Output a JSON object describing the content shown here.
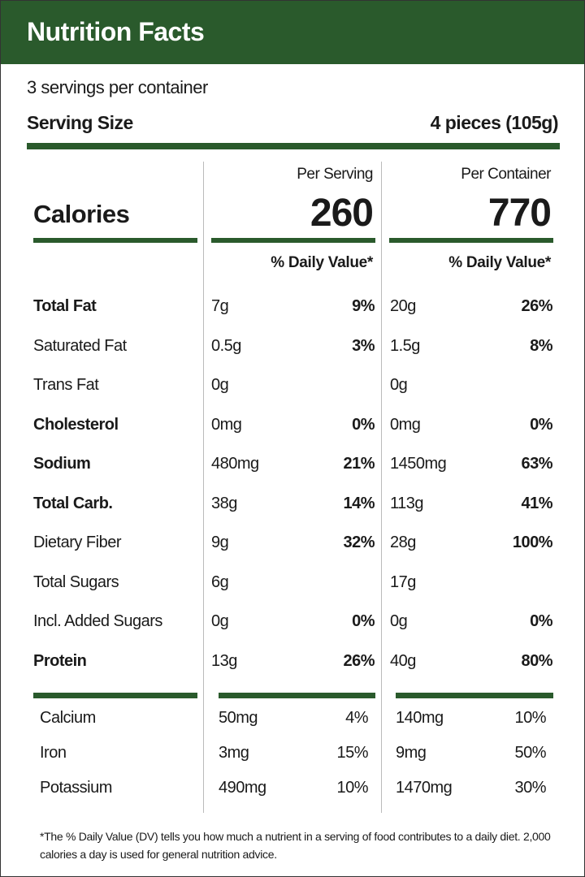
{
  "header": {
    "title": "Nutrition Facts"
  },
  "servings_per_container": "3 servings per container",
  "serving_size": {
    "label": "Serving Size",
    "value": "4 pieces (105g)"
  },
  "calories": {
    "label": "Calories",
    "per_serving_label": "Per Serving",
    "per_container_label": "Per Container",
    "per_serving": "260",
    "per_container": "770"
  },
  "daily_value_header": "% Daily Value*",
  "nutrients": [
    {
      "name": "Total Fat",
      "bold": true,
      "serving_amount": "7g",
      "serving_dv": "9%",
      "container_amount": "20g",
      "container_dv": "26%"
    },
    {
      "name": "Saturated Fat",
      "bold": false,
      "serving_amount": "0.5g",
      "serving_dv": "3%",
      "container_amount": "1.5g",
      "container_dv": "8%"
    },
    {
      "name": "Trans Fat",
      "bold": false,
      "serving_amount": "0g",
      "serving_dv": "",
      "container_amount": "0g",
      "container_dv": ""
    },
    {
      "name": "Cholesterol",
      "bold": true,
      "serving_amount": "0mg",
      "serving_dv": "0%",
      "container_amount": "0mg",
      "container_dv": "0%"
    },
    {
      "name": "Sodium",
      "bold": true,
      "serving_amount": "480mg",
      "serving_dv": "21%",
      "container_amount": "1450mg",
      "container_dv": "63%"
    },
    {
      "name": "Total Carb.",
      "bold": true,
      "serving_amount": "38g",
      "serving_dv": "14%",
      "container_amount": "113g",
      "container_dv": "41%"
    },
    {
      "name": "Dietary Fiber",
      "bold": false,
      "serving_amount": "9g",
      "serving_dv": "32%",
      "container_amount": "28g",
      "container_dv": "100%"
    },
    {
      "name": "Total Sugars",
      "bold": false,
      "serving_amount": "6g",
      "serving_dv": "",
      "container_amount": "17g",
      "container_dv": ""
    },
    {
      "name": "Incl. Added Sugars",
      "bold": false,
      "serving_amount": "0g",
      "serving_dv": "0%",
      "container_amount": "0g",
      "container_dv": "0%"
    },
    {
      "name": "Protein",
      "bold": true,
      "serving_amount": "13g",
      "serving_dv": "26%",
      "container_amount": "40g",
      "container_dv": "80%"
    }
  ],
  "minerals": [
    {
      "name": "Calcium",
      "serving_amount": "50mg",
      "serving_dv": "4%",
      "container_amount": "140mg",
      "container_dv": "10%"
    },
    {
      "name": "Iron",
      "serving_amount": "3mg",
      "serving_dv": "15%",
      "container_amount": "9mg",
      "container_dv": "50%"
    },
    {
      "name": "Potassium",
      "serving_amount": "490mg",
      "serving_dv": "10%",
      "container_amount": "1470mg",
      "container_dv": "30%"
    }
  ],
  "footnote": "*The % Daily Value (DV) tells you how much a nutrient in a serving of food contributes to a daily diet. 2,000 calories a day is used for general nutrition advice.",
  "colors": {
    "accent": "#2a5a2c",
    "text": "#1a1a1a",
    "divider": "#bbbbbb"
  }
}
